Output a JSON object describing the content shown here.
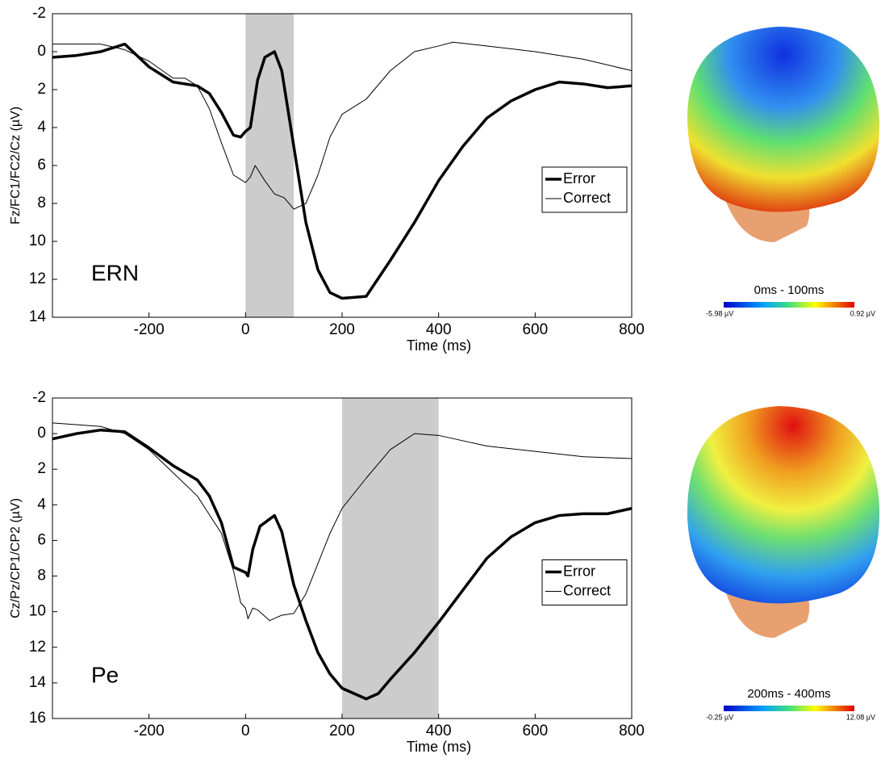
{
  "chart_data": [
    {
      "type": "line",
      "annotation": "ERN",
      "x_label": "Time (ms)",
      "y_label": "Fz/FC1/FC2/Cz (µV)",
      "xlim": [
        -400,
        800
      ],
      "xticks": [
        -200,
        0,
        200,
        400,
        600,
        800
      ],
      "ylim": [
        -2,
        14
      ],
      "yticks": [
        -2,
        0,
        2,
        4,
        6,
        8,
        10,
        12,
        14
      ],
      "y_inverted": true,
      "shaded": [
        0,
        100
      ],
      "legend": "center-right",
      "series": [
        {
          "name": "Error",
          "color": "#000000",
          "x": [
            -400,
            -350,
            -300,
            -250,
            -200,
            -150,
            -100,
            -75,
            -50,
            -25,
            -10,
            0,
            10,
            25,
            40,
            60,
            75,
            100,
            125,
            150,
            175,
            200,
            250,
            300,
            350,
            400,
            450,
            500,
            550,
            600,
            650,
            700,
            750,
            800
          ],
          "values": [
            0.3,
            0.2,
            0.0,
            -0.4,
            0.8,
            1.6,
            1.8,
            2.2,
            3.2,
            4.4,
            4.5,
            4.2,
            4.0,
            1.5,
            0.3,
            0.0,
            1.0,
            5.0,
            9.0,
            11.5,
            12.7,
            13.0,
            12.9,
            11.0,
            9.0,
            6.8,
            5.0,
            3.5,
            2.6,
            2.0,
            1.6,
            1.7,
            1.9,
            1.8
          ]
        },
        {
          "name": "Correct",
          "color": "#000000",
          "x": [
            -400,
            -300,
            -250,
            -200,
            -150,
            -125,
            -100,
            -75,
            -50,
            -25,
            0,
            10,
            20,
            40,
            60,
            80,
            100,
            125,
            150,
            175,
            200,
            250,
            300,
            350,
            400,
            430,
            500,
            600,
            700,
            800
          ],
          "values": [
            -0.4,
            -0.4,
            -0.1,
            0.5,
            1.4,
            1.4,
            1.8,
            3.0,
            4.8,
            6.5,
            6.9,
            6.6,
            6.0,
            6.8,
            7.5,
            7.7,
            8.3,
            8.0,
            6.5,
            4.5,
            3.3,
            2.5,
            1.0,
            0.0,
            -0.3,
            -0.5,
            -0.3,
            0.0,
            0.4,
            1.0
          ]
        }
      ],
      "colorbar": {
        "title": "0ms - 100ms",
        "labels": [
          "-5.98 µV",
          "0.92 µV"
        ]
      }
    },
    {
      "type": "line",
      "annotation": "Pe",
      "x_label": "Time (ms)",
      "y_label": "Cz/Pz/CP1/CP2 (µV)",
      "xlim": [
        -400,
        800
      ],
      "xticks": [
        -200,
        0,
        200,
        400,
        600,
        800
      ],
      "ylim": [
        -2,
        16
      ],
      "yticks": [
        -2,
        0,
        2,
        4,
        6,
        8,
        10,
        12,
        14,
        16
      ],
      "y_inverted": true,
      "shaded": [
        200,
        400
      ],
      "legend": "center-right",
      "series": [
        {
          "name": "Error",
          "color": "#000000",
          "x": [
            -400,
            -350,
            -300,
            -250,
            -200,
            -150,
            -100,
            -75,
            -50,
            -25,
            0,
            5,
            15,
            30,
            60,
            75,
            100,
            125,
            150,
            175,
            200,
            250,
            275,
            300,
            350,
            400,
            450,
            500,
            550,
            600,
            650,
            700,
            750,
            800
          ],
          "values": [
            0.3,
            0.0,
            -0.2,
            -0.1,
            0.8,
            1.8,
            2.6,
            3.5,
            5.0,
            7.5,
            7.8,
            8.0,
            6.5,
            5.2,
            4.6,
            5.5,
            8.5,
            10.5,
            12.3,
            13.5,
            14.3,
            14.9,
            14.6,
            13.8,
            12.3,
            10.6,
            8.8,
            7.0,
            5.8,
            5.0,
            4.6,
            4.5,
            4.5,
            4.2
          ]
        },
        {
          "name": "Correct",
          "color": "#000000",
          "x": [
            -400,
            -300,
            -250,
            -200,
            -150,
            -100,
            -50,
            -25,
            -10,
            0,
            5,
            15,
            25,
            50,
            75,
            100,
            125,
            150,
            175,
            200,
            250,
            300,
            350,
            400,
            450,
            500,
            600,
            700,
            800
          ],
          "values": [
            -0.6,
            -0.4,
            0.0,
            0.9,
            2.2,
            3.5,
            5.6,
            7.7,
            9.5,
            9.8,
            10.4,
            9.8,
            9.9,
            10.5,
            10.2,
            10.1,
            9.0,
            7.3,
            5.6,
            4.2,
            2.5,
            0.9,
            0.0,
            0.1,
            0.4,
            0.7,
            1.0,
            1.3,
            1.4
          ]
        }
      ],
      "colorbar": {
        "title": "200ms - 400ms",
        "labels": [
          "-0.25 µV",
          "12.08 µV"
        ]
      }
    }
  ]
}
